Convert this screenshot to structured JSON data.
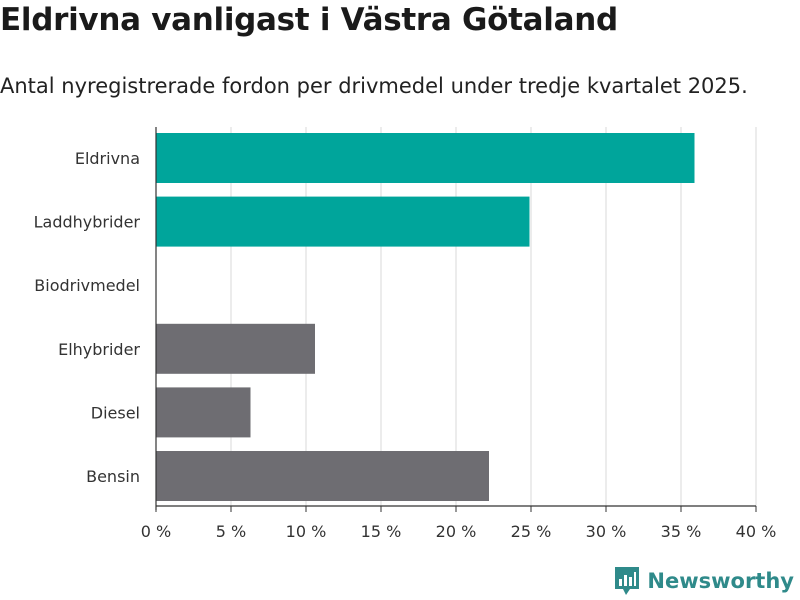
{
  "title": "Eldrivna vanligast i Västra Götaland",
  "subtitle": "Antal nyregistrerade fordon per drivmedel under tredje kvartalet 2025.",
  "brand": {
    "name": "Newsworthy",
    "color": "#2f8a8a",
    "icon": "newsworthy-logo-icon"
  },
  "chart_data": {
    "type": "bar",
    "orientation": "horizontal",
    "title": "Eldrivna vanligast i Västra Götaland",
    "subtitle": "Antal nyregistrerade fordon per drivmedel under tredje kvartalet 2025.",
    "xlabel": "",
    "ylabel": "",
    "xlim": [
      0,
      40
    ],
    "grid": true,
    "categories": [
      "Eldrivna",
      "Laddhybrider",
      "Biodrivmedel",
      "Elhybrider",
      "Diesel",
      "Bensin"
    ],
    "values": [
      35.9,
      24.9,
      0.0,
      10.6,
      6.3,
      22.2
    ],
    "colors": [
      "#00a59b",
      "#00a59b",
      "#00a59b",
      "#6e6d72",
      "#6e6d72",
      "#6e6d72"
    ],
    "xticks": [
      0,
      5,
      10,
      15,
      20,
      25,
      30,
      35,
      40
    ],
    "xtick_labels": [
      "0 %",
      "5 %",
      "10 %",
      "15 %",
      "20 %",
      "25 %",
      "30 %",
      "35 %",
      "40 %"
    ]
  }
}
